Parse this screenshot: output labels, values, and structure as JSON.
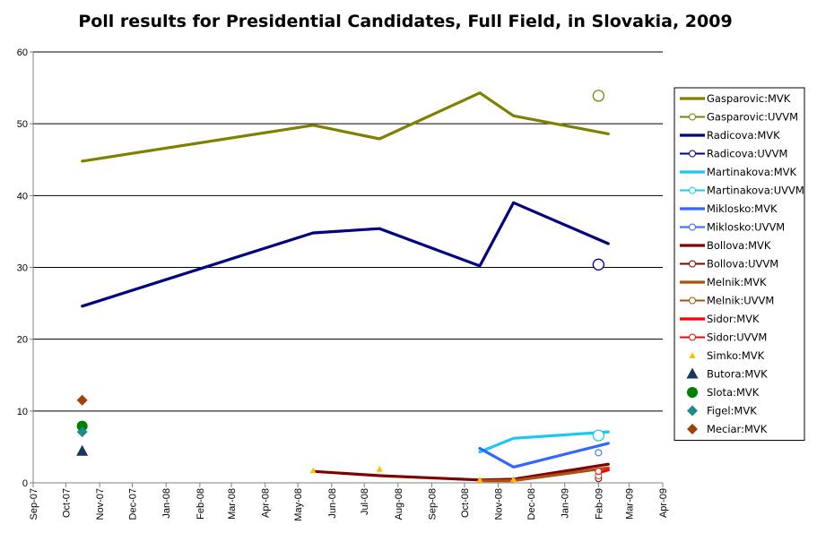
{
  "chart_data": {
    "type": "line",
    "title": "Poll results for Presidential Candidates, Full Field, in Slovakia, 2009",
    "xlabel": "",
    "ylabel": "",
    "ylim": [
      0,
      60
    ],
    "yticks": [
      0,
      10,
      20,
      30,
      40,
      50,
      60
    ],
    "xlim": [
      "2007-09-01",
      "2009-04-01"
    ],
    "xticks": [
      {
        "date": "2007-09-01",
        "label": "Sep-07"
      },
      {
        "date": "2007-10-01",
        "label": "Oct-07"
      },
      {
        "date": "2007-11-01",
        "label": "Nov-07"
      },
      {
        "date": "2007-12-01",
        "label": "Dec-07"
      },
      {
        "date": "2008-01-01",
        "label": "Jan-08"
      },
      {
        "date": "2008-02-01",
        "label": "Feb-08"
      },
      {
        "date": "2008-03-01",
        "label": "Mar-08"
      },
      {
        "date": "2008-04-01",
        "label": "Apr-08"
      },
      {
        "date": "2008-05-01",
        "label": "May-08"
      },
      {
        "date": "2008-06-01",
        "label": "Jun-08"
      },
      {
        "date": "2008-07-01",
        "label": "Jul-08"
      },
      {
        "date": "2008-08-01",
        "label": "Aug-08"
      },
      {
        "date": "2008-09-01",
        "label": "Sep-08"
      },
      {
        "date": "2008-10-01",
        "label": "Oct-08"
      },
      {
        "date": "2008-11-01",
        "label": "Nov-08"
      },
      {
        "date": "2008-12-01",
        "label": "Dec-08"
      },
      {
        "date": "2009-01-01",
        "label": "Jan-09"
      },
      {
        "date": "2009-02-01",
        "label": "Feb-09"
      },
      {
        "date": "2009-03-01",
        "label": "Mar-09"
      },
      {
        "date": "2009-04-01",
        "label": "Apr-09"
      }
    ],
    "grid": "horizontal",
    "legend_position": "right",
    "series": [
      {
        "name": "Gasparovic:MVK",
        "color": "#808000",
        "style": "line",
        "points": [
          [
            "2007-10-16",
            44.8
          ],
          [
            "2008-05-15",
            49.8
          ],
          [
            "2008-07-15",
            47.9
          ],
          [
            "2008-10-15",
            54.3
          ],
          [
            "2008-11-15",
            51.1
          ],
          [
            "2009-02-10",
            48.6
          ]
        ]
      },
      {
        "name": "Gasparovic:UVVM",
        "color": "#808000",
        "style": "open-circle",
        "points": [
          [
            "2009-02-01",
            53.9
          ]
        ]
      },
      {
        "name": "Radicova:MVK",
        "color": "#000080",
        "style": "line",
        "points": [
          [
            "2007-10-16",
            24.6
          ],
          [
            "2008-05-15",
            34.8
          ],
          [
            "2008-07-15",
            35.4
          ],
          [
            "2008-10-15",
            30.2
          ],
          [
            "2008-11-15",
            39.0
          ],
          [
            "2009-02-10",
            33.3
          ]
        ]
      },
      {
        "name": "Radicova:UVVM",
        "color": "#000080",
        "style": "open-circle",
        "points": [
          [
            "2009-02-01",
            30.4
          ]
        ]
      },
      {
        "name": "Martinakova:MVK",
        "color": "#1ac8f0",
        "style": "line",
        "points": [
          [
            "2008-10-15",
            4.3
          ],
          [
            "2008-11-15",
            6.2
          ],
          [
            "2009-02-10",
            7.1
          ]
        ]
      },
      {
        "name": "Martinakova:UVVM",
        "color": "#1ac8f0",
        "style": "open-circle",
        "points": [
          [
            "2009-02-01",
            6.6
          ]
        ]
      },
      {
        "name": "Miklosko:MVK",
        "color": "#3366ff",
        "style": "line",
        "points": [
          [
            "2008-10-15",
            4.8
          ],
          [
            "2008-11-15",
            2.2
          ],
          [
            "2009-02-10",
            5.5
          ]
        ]
      },
      {
        "name": "Miklosko:UVVM",
        "color": "#3366ff",
        "style": "small-open-circle",
        "points": [
          [
            "2009-02-01",
            4.2
          ]
        ]
      },
      {
        "name": "Bollova:MVK",
        "color": "#800000",
        "style": "line",
        "points": [
          [
            "2008-05-15",
            1.6
          ],
          [
            "2008-07-15",
            1.0
          ],
          [
            "2008-10-15",
            0.4
          ],
          [
            "2008-11-15",
            0.5
          ],
          [
            "2009-02-10",
            2.6
          ]
        ]
      },
      {
        "name": "Bollova:UVVM",
        "color": "#800000",
        "style": "small-open-circle",
        "points": [
          [
            "2009-02-01",
            0.6
          ]
        ]
      },
      {
        "name": "Melnik:MVK",
        "color": "#b05010",
        "style": "line",
        "points": [
          [
            "2008-10-15",
            0.3
          ],
          [
            "2008-11-15",
            0.3
          ],
          [
            "2009-02-10",
            2.1
          ]
        ]
      },
      {
        "name": "Melnik:UVVM",
        "color": "#b05010",
        "style": "small-open-circle",
        "points": [
          [
            "2009-02-01",
            1.0
          ]
        ]
      },
      {
        "name": "Sidor:MVK",
        "color": "#ff0000",
        "style": "line",
        "points": [
          [
            "2009-02-01",
            1.4
          ],
          [
            "2009-02-10",
            1.8
          ]
        ]
      },
      {
        "name": "Sidor:UVVM",
        "color": "#ff0000",
        "style": "small-open-circle",
        "points": [
          [
            "2009-02-01",
            1.6
          ]
        ]
      },
      {
        "name": "Simko:MVK",
        "color": "#ffc000",
        "style": "small-triangle",
        "points": [
          [
            "2008-05-15",
            1.7
          ],
          [
            "2008-07-15",
            1.9
          ],
          [
            "2008-10-15",
            0.4
          ],
          [
            "2008-11-15",
            0.5
          ]
        ]
      },
      {
        "name": "Butora:MVK",
        "color": "#17375e",
        "style": "triangle",
        "points": [
          [
            "2007-10-16",
            4.4
          ]
        ]
      },
      {
        "name": "Slota:MVK",
        "color": "#008000",
        "style": "filled-circle",
        "points": [
          [
            "2007-10-16",
            7.9
          ]
        ]
      },
      {
        "name": "Figel:MVK",
        "color": "#1f8a8a",
        "style": "diamond",
        "points": [
          [
            "2007-10-16",
            7.1
          ]
        ]
      },
      {
        "name": "Meciar:MVK",
        "color": "#a0400a",
        "style": "diamond",
        "points": [
          [
            "2007-10-16",
            11.5
          ]
        ]
      }
    ]
  }
}
